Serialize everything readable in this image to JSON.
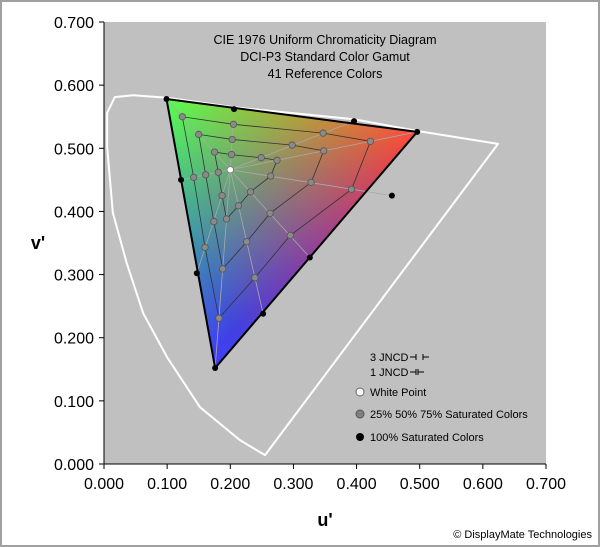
{
  "chart_data": {
    "type": "scatter",
    "title": [
      "CIE 1976 Uniform Chromaticity Diagram",
      "DCI-P3 Standard Color Gamut",
      "41 Reference Colors"
    ],
    "xlabel": "u'",
    "ylabel": "v'",
    "xlim": [
      0,
      0.7
    ],
    "ylim": [
      0,
      0.7
    ],
    "x_ticks": [
      "0.000",
      "0.100",
      "0.200",
      "0.300",
      "0.400",
      "0.500",
      "0.600",
      "0.700"
    ],
    "y_ticks": [
      "0.000",
      "0.100",
      "0.200",
      "0.300",
      "0.400",
      "0.500",
      "0.600",
      "0.700"
    ],
    "grid": false,
    "background_color": "#c0c0c0",
    "spectral_locus": [
      [
        0.255,
        0.014
      ],
      [
        0.215,
        0.038
      ],
      [
        0.152,
        0.09
      ],
      [
        0.1,
        0.169
      ],
      [
        0.062,
        0.239
      ],
      [
        0.036,
        0.318
      ],
      [
        0.014,
        0.398
      ],
      [
        0.005,
        0.502
      ],
      [
        0.005,
        0.556
      ],
      [
        0.017,
        0.581
      ],
      [
        0.046,
        0.584
      ],
      [
        0.1,
        0.58
      ],
      [
        0.206,
        0.565
      ],
      [
        0.396,
        0.546
      ],
      [
        0.499,
        0.527
      ],
      [
        0.624,
        0.507
      ]
    ],
    "white_point": [
      0.2,
      0.466
    ],
    "saturated_100": [
      [
        0.099,
        0.578
      ],
      [
        0.206,
        0.562
      ],
      [
        0.396,
        0.543
      ],
      [
        0.496,
        0.526
      ],
      [
        0.456,
        0.425
      ],
      [
        0.326,
        0.327
      ],
      [
        0.252,
        0.238
      ],
      [
        0.176,
        0.152
      ],
      [
        0.147,
        0.302
      ],
      [
        0.122,
        0.45
      ]
    ],
    "saturated_75": [
      [
        0.124,
        0.55
      ],
      [
        0.205,
        0.538
      ],
      [
        0.347,
        0.524
      ],
      [
        0.422,
        0.511
      ],
      [
        0.392,
        0.435
      ],
      [
        0.295,
        0.362
      ],
      [
        0.239,
        0.295
      ],
      [
        0.182,
        0.231
      ],
      [
        0.16,
        0.343
      ],
      [
        0.142,
        0.454
      ]
    ],
    "saturated_50": [
      [
        0.15,
        0.522
      ],
      [
        0.203,
        0.514
      ],
      [
        0.298,
        0.505
      ],
      [
        0.348,
        0.496
      ],
      [
        0.328,
        0.446
      ],
      [
        0.263,
        0.397
      ],
      [
        0.226,
        0.352
      ],
      [
        0.188,
        0.309
      ],
      [
        0.174,
        0.384
      ],
      [
        0.161,
        0.458
      ]
    ],
    "saturated_25": [
      [
        0.175,
        0.494
      ],
      [
        0.202,
        0.49
      ],
      [
        0.249,
        0.485
      ],
      [
        0.274,
        0.481
      ],
      [
        0.264,
        0.456
      ],
      [
        0.232,
        0.431
      ],
      [
        0.213,
        0.409
      ],
      [
        0.194,
        0.388
      ],
      [
        0.187,
        0.425
      ],
      [
        0.181,
        0.462
      ]
    ],
    "primaries_colors": {
      "red": "#ff0000",
      "green": "#00ff00",
      "blue": "#0000ff"
    },
    "legend": {
      "jncd3": "3 JNCD",
      "jncd1": "1 JNCD",
      "white_point": "White Point",
      "partial": "25% 50% 75% Saturated Colors",
      "full": "100% Saturated Colors"
    },
    "legend_placement": "bottom-right"
  },
  "copyright": "© DisplayMate Technologies"
}
